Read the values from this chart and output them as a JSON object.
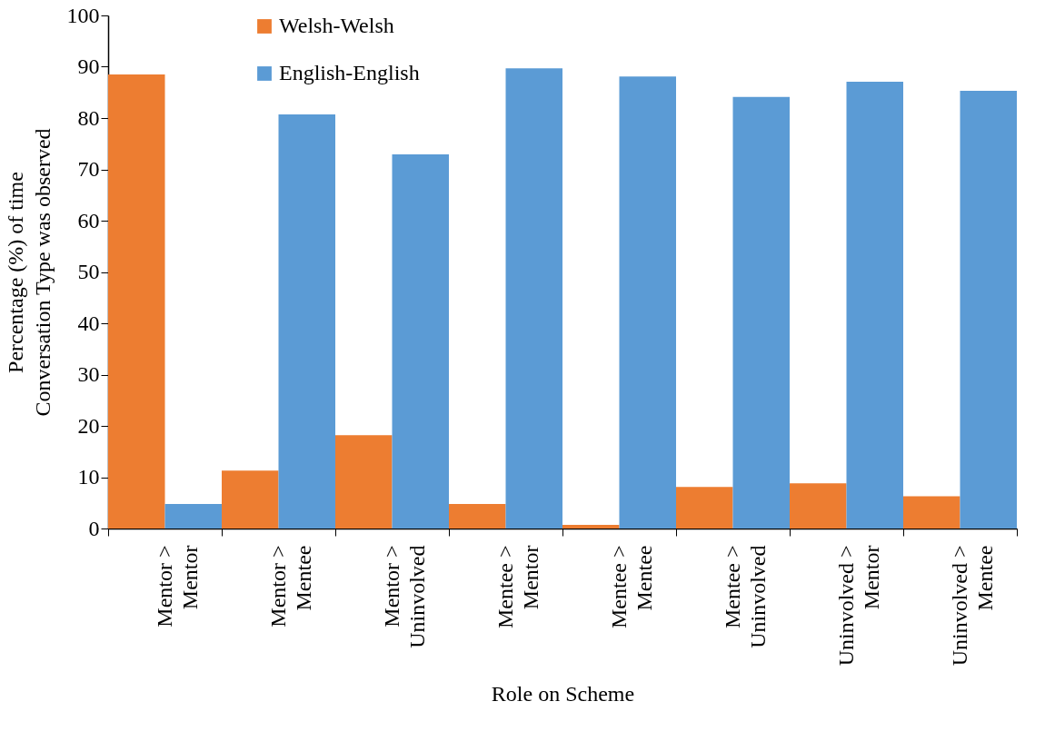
{
  "chart_data": {
    "type": "bar",
    "xlabel": "Role on Scheme",
    "ylabel": "Percentage (%) of time\nConversation Type was observed",
    "categories": [
      "Mentor >\nMentor",
      "Mentor >\nMentee",
      "Mentor >\nUninvolved",
      "Mentee >\nMentor",
      "Mentee >\nMentee",
      "Mentee >\nUninvolved",
      "Uninvolved >\nMentor",
      "Uninvolved >\nMentee"
    ],
    "series": [
      {
        "name": "Welsh-Welsh",
        "color": "#ed7d31",
        "values": [
          88.5,
          11.3,
          18.2,
          4.8,
          0.7,
          8.1,
          8.8,
          6.3
        ]
      },
      {
        "name": "English-English",
        "color": "#5b9bd5",
        "values": [
          4.8,
          80.7,
          72.9,
          89.7,
          88.1,
          84.1,
          87.1,
          85.3
        ]
      }
    ],
    "ylim": [
      0,
      100
    ],
    "yticks": [
      0,
      10,
      20,
      30,
      40,
      50,
      60,
      70,
      80,
      90,
      100
    ],
    "grid": false,
    "legend": "top left"
  }
}
